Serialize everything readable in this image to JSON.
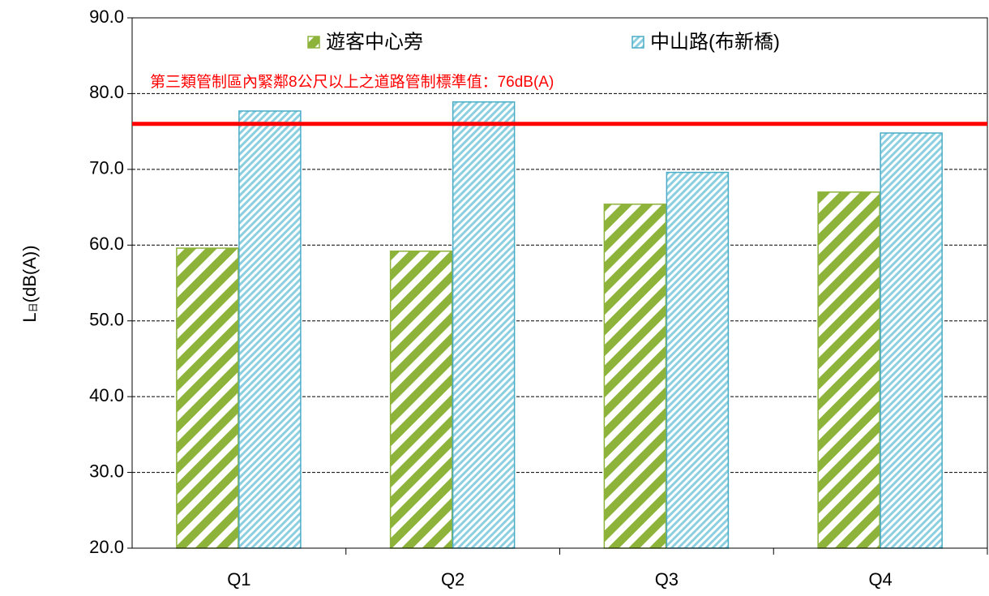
{
  "chart_data": {
    "type": "bar",
    "y_label": [
      "L",
      "日",
      "(dB(A))"
    ],
    "categories": [
      "Q1",
      "Q2",
      "Q3",
      "Q4"
    ],
    "series": [
      {
        "name": "遊客中心旁",
        "color": "#8db33a",
        "values": [
          59.6,
          59.2,
          65.4,
          67.0
        ]
      },
      {
        "name": "中山路(布新橋)",
        "color": "#4bacc6",
        "values": [
          77.7,
          78.9,
          69.6,
          74.8
        ]
      }
    ],
    "reference_line": {
      "value": 76,
      "color": "#ff0000",
      "label": "第三類管制區內緊鄰8公尺以上之道路管制標準值：76dB(A)"
    },
    "ylim": [
      20,
      90
    ],
    "yticks": [
      {
        "value": 20,
        "label": "20.0"
      },
      {
        "value": 30,
        "label": "30.0"
      },
      {
        "value": 40,
        "label": "40.0"
      },
      {
        "value": 50,
        "label": "50.0"
      },
      {
        "value": 60,
        "label": "60.0"
      },
      {
        "value": 70,
        "label": "70.0"
      },
      {
        "value": 80,
        "label": "80.0"
      },
      {
        "value": 90,
        "label": "90.0"
      }
    ],
    "grid": true
  }
}
